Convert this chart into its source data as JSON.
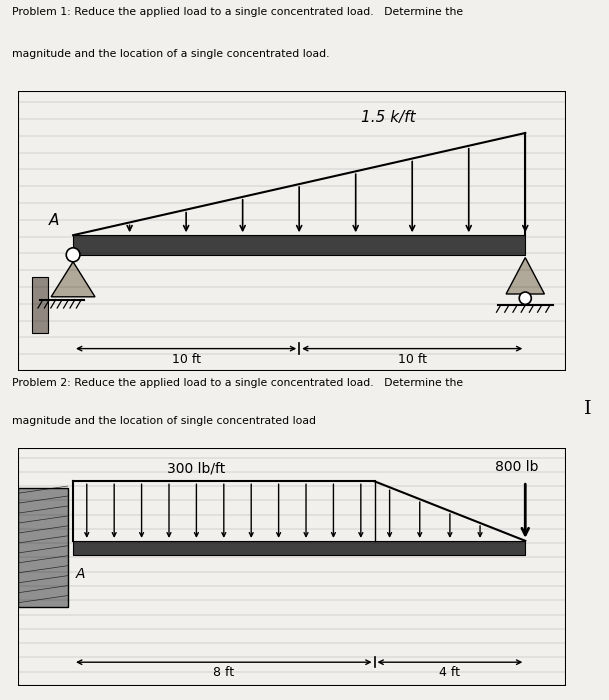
{
  "bg_color": "#c8c4bc",
  "page_bg": "#f2f0ed",
  "problem1": {
    "title_line1": "Problem 1: Reduce the applied load to a single concentrated load.   Determine the",
    "title_line2": "magnitude and the location of a single concentrated load.",
    "load_label": "1.5 k/ft",
    "dim1": "10 ft",
    "dim2": "10 ft",
    "label_A": "A"
  },
  "problem2": {
    "title_line1": "Problem 2: Reduce the applied load to a single concentrated load.   Determine the",
    "title_line2": "magnitude and the location of single concentrated load",
    "load_label": "300 lb/ft",
    "point_load_label": "800 lb",
    "dim1": "8 ft",
    "dim2": "4 ft",
    "label_A": "A"
  }
}
